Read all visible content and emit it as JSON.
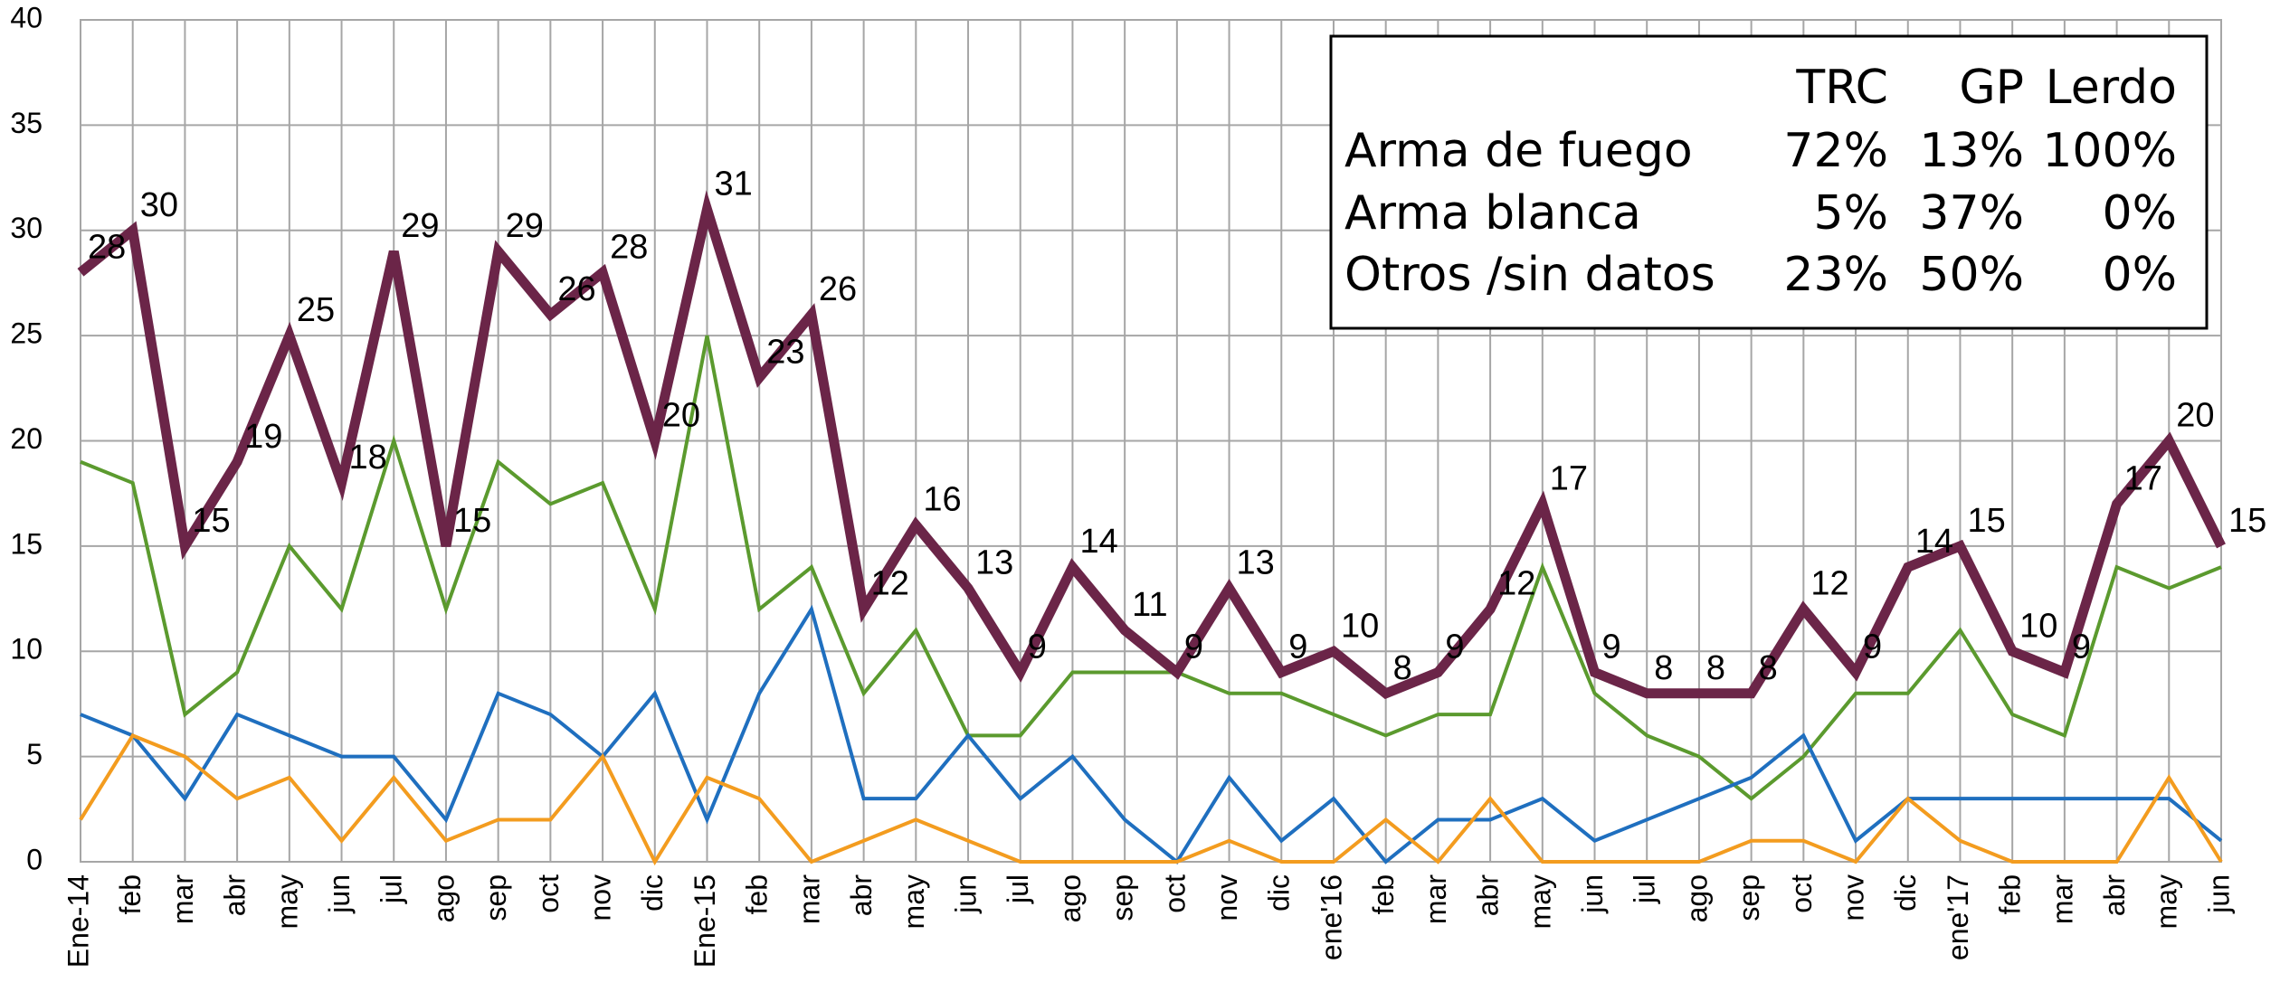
{
  "chart_data": {
    "type": "line",
    "categories": [
      "Ene-14",
      "feb",
      "mar",
      "abr",
      "may",
      "jun",
      "jul",
      "ago",
      "sep",
      "oct",
      "nov",
      "dic",
      "Ene-15",
      "feb",
      "mar",
      "abr",
      "may",
      "jun",
      "jul",
      "ago",
      "sep",
      "oct",
      "nov",
      "dic",
      "ene'16",
      "feb",
      "mar",
      "abr",
      "may",
      "jun",
      "jul",
      "ago",
      "sep",
      "oct",
      "nov",
      "dic",
      "ene'17",
      "feb",
      "mar",
      "abr",
      "may",
      "jun"
    ],
    "series": [
      {
        "color": "#5b9a2e",
        "values": [
          19,
          18,
          7,
          9,
          15,
          12,
          20,
          12,
          19,
          17,
          18,
          12,
          25,
          12,
          14,
          8,
          11,
          6,
          6,
          9,
          9,
          9,
          8,
          8,
          7,
          6,
          7,
          7,
          14,
          8,
          6,
          5,
          3,
          5,
          8,
          8,
          11,
          7,
          6,
          14,
          13,
          14
        ]
      },
      {
        "color": "#1f6fbf",
        "values": [
          7,
          6,
          3,
          7,
          6,
          5,
          5,
          2,
          8,
          7,
          5,
          8,
          2,
          8,
          12,
          3,
          3,
          6,
          3,
          5,
          2,
          0,
          4,
          1,
          3,
          0,
          2,
          2,
          3,
          1,
          2,
          3,
          4,
          6,
          1,
          3,
          3,
          3,
          3,
          3,
          3,
          1
        ]
      },
      {
        "color": "#f39c1f",
        "values": [
          2,
          6,
          5,
          3,
          4,
          1,
          4,
          1,
          2,
          2,
          5,
          0,
          4,
          3,
          0,
          1,
          2,
          1,
          0,
          0,
          0,
          0,
          1,
          0,
          0,
          2,
          0,
          3,
          0,
          0,
          0,
          0,
          1,
          1,
          0,
          3,
          1,
          0,
          0,
          0,
          4,
          0
        ]
      },
      {
        "color": "#6b2548",
        "values": [
          28,
          30,
          15,
          19,
          25,
          18,
          29,
          15,
          29,
          26,
          28,
          20,
          31,
          23,
          26,
          12,
          16,
          13,
          9,
          14,
          11,
          9,
          13,
          9,
          10,
          8,
          9,
          12,
          17,
          9,
          8,
          8,
          8,
          12,
          9,
          14,
          15,
          10,
          9,
          17,
          20,
          15
        ],
        "data_labels": true
      }
    ],
    "ylim": [
      0,
      40
    ],
    "yticks": [
      0,
      5,
      10,
      15,
      20,
      25,
      30,
      35,
      40
    ],
    "grid": true,
    "table": {
      "columns": [
        "TRC",
        "GP",
        "Lerdo"
      ],
      "rows": [
        {
          "label": "Arma de fuego",
          "cells": [
            "72%",
            "13%",
            "100%"
          ]
        },
        {
          "label": "Arma blanca",
          "cells": [
            "5%",
            "37%",
            "0%"
          ]
        },
        {
          "label": "Otros /sin datos",
          "cells": [
            "23%",
            "50%",
            "0%"
          ]
        }
      ]
    }
  }
}
